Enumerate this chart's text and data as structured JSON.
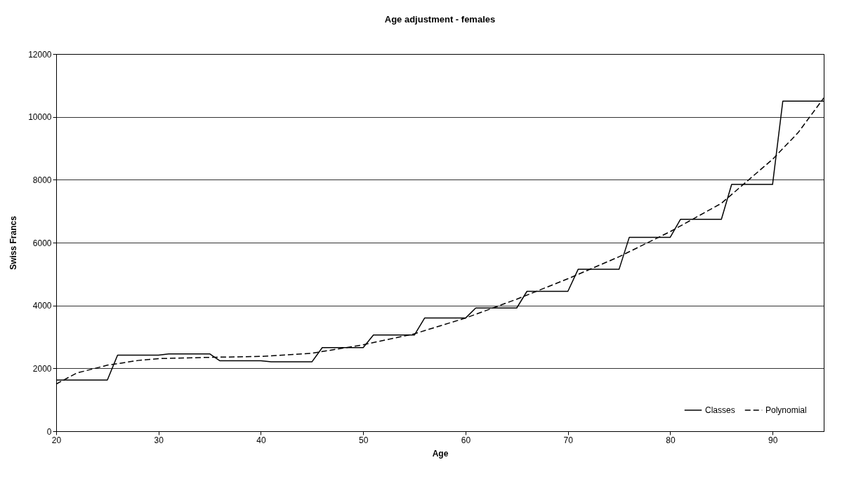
{
  "chart_data": {
    "type": "line",
    "title": "Age adjustment - females",
    "xlabel": "Age",
    "ylabel": "Swiss Francs",
    "series": [
      {
        "name": "Classes",
        "color": "#000000",
        "line_style": "solid",
        "x": [
          20,
          25,
          26,
          30,
          31,
          35,
          36,
          40,
          41,
          45,
          46,
          50,
          51,
          55,
          56,
          60,
          61,
          65,
          66,
          70,
          71,
          75,
          76,
          80,
          81,
          85,
          86,
          90,
          91,
          95
        ],
        "values": [
          1630,
          1630,
          2420,
          2420,
          2460,
          2460,
          2240,
          2240,
          2210,
          2210,
          2660,
          2660,
          3060,
          3060,
          3600,
          3600,
          3920,
          3920,
          4450,
          4450,
          5150,
          5150,
          6170,
          6170,
          6740,
          6740,
          7850,
          7850,
          10500,
          10500
        ]
      },
      {
        "name": "Polynomial",
        "color": "#000000",
        "line_style": "dashed",
        "x": [
          20,
          22,
          25,
          28,
          30,
          35,
          40,
          45,
          50,
          55,
          60,
          65,
          70,
          75,
          80,
          85,
          90,
          92.5,
          95
        ],
        "values": [
          1500,
          1850,
          2100,
          2250,
          2310,
          2350,
          2380,
          2480,
          2750,
          3100,
          3600,
          4200,
          4850,
          5550,
          6350,
          7250,
          8650,
          9500,
          10600
        ]
      }
    ],
    "xlim": [
      20,
      95
    ],
    "xticks": [
      20,
      30,
      40,
      50,
      60,
      70,
      80,
      90
    ],
    "ylim": [
      0,
      12000
    ],
    "yticks": [
      0,
      2000,
      4000,
      6000,
      8000,
      10000,
      12000
    ],
    "grid": "y",
    "legend": "bottom right"
  }
}
